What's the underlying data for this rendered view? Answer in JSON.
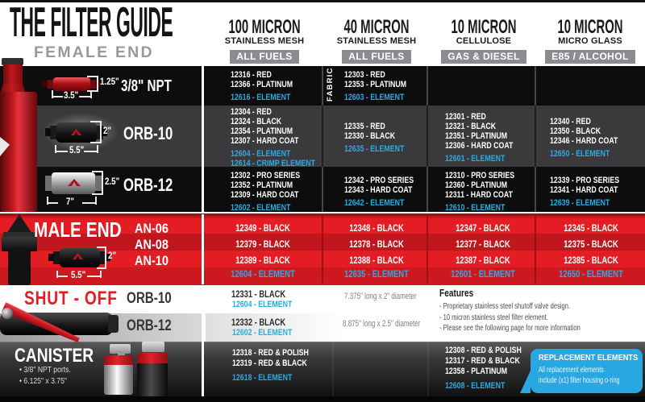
{
  "header": {
    "title": "THE FILTER GUIDE",
    "section_female": "FEMALE END"
  },
  "columns": [
    {
      "name": "100 MICRON",
      "sub": "STAINLESS MESH",
      "badge": "ALL FUELS"
    },
    {
      "name": "40 MICRON",
      "sub": "STAINLESS MESH",
      "badge": "ALL FUELS"
    },
    {
      "name": "10 MICRON",
      "sub": "CELLULOSE",
      "badge": "GAS & DIESEL"
    },
    {
      "name": "10 MICRON",
      "sub": "MICRO GLASS",
      "badge": "E85 / ALCOHOL"
    }
  ],
  "colors": {
    "accent_blue": "#29ABE2",
    "brand_red": "#E4212A",
    "badge_gray": "#8A8C8F"
  },
  "female_rows": [
    {
      "label": "3/8\" NPT",
      "dim_h": "1.25\"",
      "dim_w": "3.5\"",
      "note": "FABRIC",
      "cells": [
        [
          {
            "t": "12316 - RED"
          },
          {
            "t": "12366 - PLATINUM"
          },
          {
            "t": "12616 - ELEMENT",
            "b": 1
          }
        ],
        [
          {
            "t": "12303 - RED"
          },
          {
            "t": "12353 - PLATINUM"
          },
          {
            "t": "12603 - ELEMENT",
            "b": 1
          }
        ],
        [],
        []
      ]
    },
    {
      "label": "ORB-10",
      "dim_h": "2\"",
      "dim_w": "5.5\"",
      "cells": [
        [
          {
            "t": "12304 - RED"
          },
          {
            "t": "12324 - BLACK"
          },
          {
            "t": "12354 - PLATINUM"
          },
          {
            "t": "12307 - HARD COAT"
          },
          {
            "t": "12604 - ELEMENT",
            "b": 1
          },
          {
            "t": "12614 - CRIMP ELEMENT",
            "b": 1
          }
        ],
        [
          {
            "t": "12335 - RED"
          },
          {
            "t": "12330 - BLACK"
          },
          {
            "t": "12635 - ELEMENT",
            "b": 1
          }
        ],
        [
          {
            "t": "12301 - RED"
          },
          {
            "t": "12321 - BLACK"
          },
          {
            "t": "12351 - PLATINUM"
          },
          {
            "t": "12306 - HARD COAT"
          },
          {
            "t": "12601 - ELEMENT",
            "b": 1
          }
        ],
        [
          {
            "t": "12340 - RED"
          },
          {
            "t": "12350 - BLACK"
          },
          {
            "t": "12346 - HARD COAT"
          },
          {
            "t": "12650 - ELEMENT",
            "b": 1
          }
        ]
      ]
    },
    {
      "label": "ORB-12",
      "dim_h": "2.5\"",
      "dim_w": "7\"",
      "cells": [
        [
          {
            "t": "12302 - PRO SERIES"
          },
          {
            "t": "12352 - PLATINUM"
          },
          {
            "t": "12309 - HARD COAT"
          },
          {
            "t": "12602 - ELEMENT",
            "b": 1
          }
        ],
        [
          {
            "t": "12342 - PRO SERIES"
          },
          {
            "t": "12343 - HARD COAT"
          },
          {
            "t": "12642 - ELEMENT",
            "b": 1
          }
        ],
        [
          {
            "t": "12310 - PRO SERIES"
          },
          {
            "t": "12360 - PLATINUM"
          },
          {
            "t": "12311 - HARD COAT"
          },
          {
            "t": "12610 - ELEMENT",
            "b": 1
          }
        ],
        [
          {
            "t": "12339 - PRO SERIES"
          },
          {
            "t": "12341 - HARD COAT"
          },
          {
            "t": "12639 - ELEMENT",
            "b": 1
          }
        ]
      ]
    }
  ],
  "male_end": {
    "label": "MALE END",
    "sizes": [
      "AN-06",
      "AN-08",
      "AN-10"
    ],
    "dim_h": "2\"",
    "dim_w": "5.5\"",
    "cells": [
      [
        "12349 - BLACK",
        "12379 - BLACK",
        "12389 - BLACK",
        {
          "t": "12604 - ELEMENT",
          "b": 1
        }
      ],
      [
        "12348 - BLACK",
        "12378 - BLACK",
        "12388 - BLACK",
        {
          "t": "12635 - ELEMENT",
          "b": 1
        }
      ],
      [
        "12347 - BLACK",
        "12377 - BLACK",
        "12387 - BLACK",
        {
          "t": "12601 - ELEMENT",
          "b": 1
        }
      ],
      [
        "12345 - BLACK",
        "12375 - BLACK",
        "12385 - BLACK",
        {
          "t": "12650 - ELEMENT",
          "b": 1
        }
      ]
    ]
  },
  "shut_off": {
    "label": "SHUT - OFF",
    "rows": [
      {
        "size": "ORB-10",
        "part": "12331 - BLACK",
        "element": "12604 - ELEMENT",
        "desc": "7.375\" long x 2\" diameter"
      },
      {
        "size": "ORB-12",
        "part": "12332 - BLACK",
        "element": "12602 - ELEMENT",
        "desc": "8.875\" long x 2.5\" diameter"
      }
    ],
    "features_title": "Features",
    "features": [
      "- Proprietary stainless steel shutoff valve design.",
      "- 10 micron stainless steel filter element.",
      "- Please see the following page for more information"
    ]
  },
  "canister": {
    "label": "CANISTER",
    "bullets": [
      "• 3/8\" NPT ports.",
      "• 6.125\" x 3.75\""
    ],
    "parts_col1": [
      {
        "t": "12318 - RED & POLISH"
      },
      {
        "t": "12319 - RED & BLACK"
      },
      {
        "t": "12618 - ELEMENT",
        "b": 1
      }
    ],
    "parts_col3": [
      {
        "t": "12308 - RED & POLISH"
      },
      {
        "t": "12317 - RED & BLACK"
      },
      {
        "t": "12358 - PLATINUM"
      },
      {
        "t": "12608 - ELEMENT",
        "b": 1
      }
    ],
    "replacement": {
      "title": "REPLACEMENT ELEMENTS",
      "body": [
        "All replacement elements",
        "include (x1) filter housing o-ring"
      ]
    }
  }
}
